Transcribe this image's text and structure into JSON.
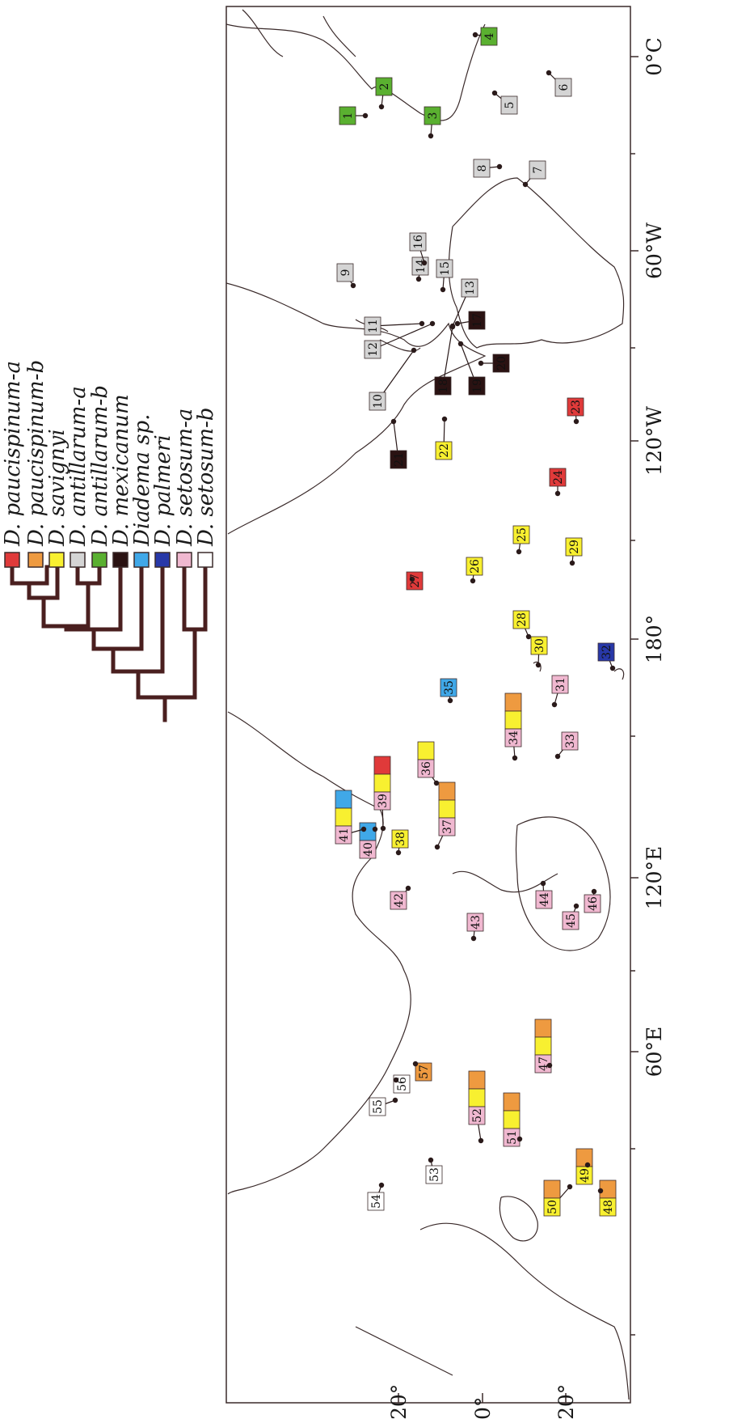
{
  "legend": {
    "items": [
      {
        "id": "pa",
        "label": "D. paucispinum-a",
        "color": "#e03a3a"
      },
      {
        "id": "pb",
        "label": "D. paucispinum-b",
        "color": "#ee9a40"
      },
      {
        "id": "sa",
        "label": "D. savignyi",
        "color": "#f8f030"
      },
      {
        "id": "aa",
        "label": "D. antillarum-a",
        "color": "#d4d4d4"
      },
      {
        "id": "ab",
        "label": "D. antillarum-b",
        "color": "#5ab030"
      },
      {
        "id": "me",
        "label": "D. mexicanum",
        "color": "#2a1212"
      },
      {
        "id": "ds",
        "label": "Diadema sp.",
        "color": "#40a8e8"
      },
      {
        "id": "pl",
        "label": "D. palmeri",
        "color": "#2838a8"
      },
      {
        "id": "sea",
        "label": "D. setosum-a",
        "color": "#f0b8d0"
      },
      {
        "id": "seb",
        "label": "D. setosum-b",
        "color": "#ffffff"
      }
    ]
  },
  "axes": {
    "lon_ticks": [
      "0°C",
      "60°W",
      "120°W",
      "180°",
      "120°E",
      "60°E"
    ],
    "lat_ticks": [
      "20°",
      "0°",
      "20°"
    ]
  },
  "sites": [
    {
      "n": "1",
      "c": [
        "ab"
      ]
    },
    {
      "n": "2",
      "c": [
        "ab"
      ]
    },
    {
      "n": "3",
      "c": [
        "ab"
      ]
    },
    {
      "n": "4",
      "c": [
        "ab"
      ]
    },
    {
      "n": "5",
      "c": [
        "aa"
      ]
    },
    {
      "n": "6",
      "c": [
        "aa"
      ]
    },
    {
      "n": "7",
      "c": [
        "aa"
      ]
    },
    {
      "n": "8",
      "c": [
        "aa"
      ]
    },
    {
      "n": "9",
      "c": [
        "aa"
      ]
    },
    {
      "n": "10",
      "c": [
        "aa"
      ]
    },
    {
      "n": "11",
      "c": [
        "aa"
      ]
    },
    {
      "n": "12",
      "c": [
        "aa"
      ]
    },
    {
      "n": "13",
      "c": [
        "aa"
      ]
    },
    {
      "n": "14",
      "c": [
        "aa"
      ]
    },
    {
      "n": "15",
      "c": [
        "aa"
      ]
    },
    {
      "n": "16",
      "c": [
        "aa"
      ]
    },
    {
      "n": "17",
      "c": [
        "me"
      ]
    },
    {
      "n": "18",
      "c": [
        "me"
      ]
    },
    {
      "n": "19",
      "c": [
        "me"
      ]
    },
    {
      "n": "20",
      "c": [
        "me"
      ]
    },
    {
      "n": "21",
      "c": [
        "me"
      ]
    },
    {
      "n": "22",
      "c": [
        "sa"
      ]
    },
    {
      "n": "23",
      "c": [
        "pa"
      ]
    },
    {
      "n": "24",
      "c": [
        "pa"
      ]
    },
    {
      "n": "25",
      "c": [
        "sa"
      ]
    },
    {
      "n": "26",
      "c": [
        "sa"
      ]
    },
    {
      "n": "27",
      "c": [
        "pa"
      ]
    },
    {
      "n": "28",
      "c": [
        "sa"
      ]
    },
    {
      "n": "29",
      "c": [
        "sa"
      ]
    },
    {
      "n": "30",
      "c": [
        "sa"
      ]
    },
    {
      "n": "31",
      "c": [
        "sea"
      ]
    },
    {
      "n": "32",
      "c": [
        "pl"
      ]
    },
    {
      "n": "33",
      "c": [
        "sea"
      ]
    },
    {
      "n": "34",
      "c": [
        "sea",
        "sa",
        "pb"
      ]
    },
    {
      "n": "35",
      "c": [
        "ds"
      ]
    },
    {
      "n": "36",
      "c": [
        "sea",
        "sa"
      ]
    },
    {
      "n": "37",
      "c": [
        "sea",
        "sa",
        "pb"
      ]
    },
    {
      "n": "38",
      "c": [
        "sa"
      ]
    },
    {
      "n": "39",
      "c": [
        "sea",
        "sa",
        "pa"
      ]
    },
    {
      "n": "40",
      "c": [
        "sea",
        "ds"
      ]
    },
    {
      "n": "41",
      "c": [
        "sea",
        "sa",
        "ds"
      ]
    },
    {
      "n": "42",
      "c": [
        "sea"
      ]
    },
    {
      "n": "43",
      "c": [
        "sea"
      ]
    },
    {
      "n": "44",
      "c": [
        "sea"
      ]
    },
    {
      "n": "45",
      "c": [
        "sea"
      ]
    },
    {
      "n": "46",
      "c": [
        "sea"
      ]
    },
    {
      "n": "47",
      "c": [
        "sea",
        "sa",
        "pb"
      ]
    },
    {
      "n": "48",
      "c": [
        "sa",
        "pb"
      ]
    },
    {
      "n": "49",
      "c": [
        "sa",
        "pb"
      ]
    },
    {
      "n": "50",
      "c": [
        "sa",
        "pb"
      ]
    },
    {
      "n": "51",
      "c": [
        "sea",
        "sa",
        "pb"
      ]
    },
    {
      "n": "52",
      "c": [
        "sea",
        "sa",
        "pb"
      ]
    },
    {
      "n": "53",
      "c": [
        "seb"
      ]
    },
    {
      "n": "54",
      "c": [
        "seb"
      ]
    },
    {
      "n": "55",
      "c": [
        "seb"
      ]
    },
    {
      "n": "56",
      "c": [
        "seb"
      ]
    },
    {
      "n": "57",
      "c": [
        "pb"
      ]
    }
  ]
}
